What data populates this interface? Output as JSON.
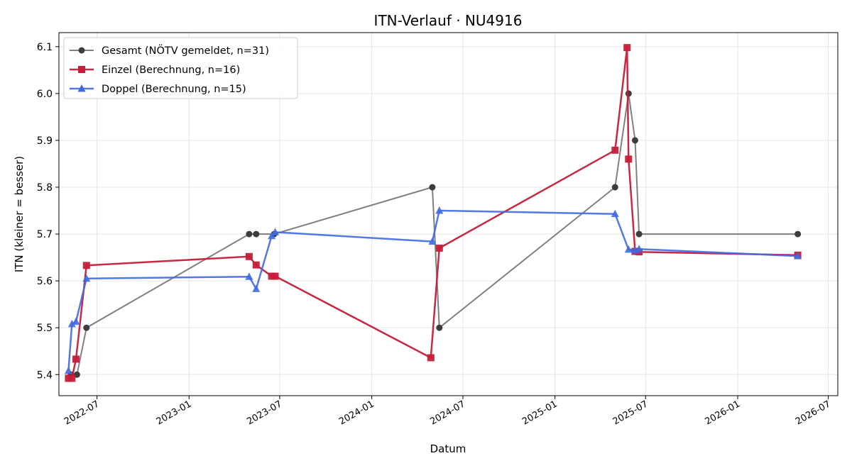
{
  "chart_data": {
    "type": "line",
    "title": "ITN-Verlauf · NU4916",
    "xlabel": "Datum",
    "ylabel": "ITN  (kleiner = besser)",
    "xlim": [
      "2022-04-16",
      "2026-07-20"
    ],
    "ylim": [
      5.355,
      6.13
    ],
    "x_ticks": [
      {
        "date": "2022-07-01",
        "label": "2022-07"
      },
      {
        "date": "2023-01-01",
        "label": "2023-01"
      },
      {
        "date": "2023-07-01",
        "label": "2023-07"
      },
      {
        "date": "2024-01-01",
        "label": "2024-01"
      },
      {
        "date": "2024-07-01",
        "label": "2024-07"
      },
      {
        "date": "2025-01-01",
        "label": "2025-01"
      },
      {
        "date": "2025-07-01",
        "label": "2025-07"
      },
      {
        "date": "2026-01-01",
        "label": "2026-01"
      },
      {
        "date": "2026-07-01",
        "label": "2026-07"
      }
    ],
    "y_ticks": [
      {
        "value": 5.4,
        "label": "5.4"
      },
      {
        "value": 5.5,
        "label": "5.5"
      },
      {
        "value": 5.6,
        "label": "5.6"
      },
      {
        "value": 5.7,
        "label": "5.7"
      },
      {
        "value": 5.8,
        "label": "5.8"
      },
      {
        "value": 5.9,
        "label": "5.9"
      },
      {
        "value": 6.0,
        "label": "6.0"
      },
      {
        "value": 6.1,
        "label": "6.1"
      }
    ],
    "grid": true,
    "legend_position": "top-left",
    "series": [
      {
        "name": "Gesamt (NÖTV gemeldet, n=31)",
        "color": "#555555",
        "marker": "circle",
        "points": [
          {
            "x": "2022-05-10",
            "y": 5.4
          },
          {
            "x": "2022-05-22",
            "y": 5.4
          },
          {
            "x": "2022-06-10",
            "y": 5.5
          },
          {
            "x": "2023-05-01",
            "y": 5.7
          },
          {
            "x": "2023-05-15",
            "y": 5.7
          },
          {
            "x": "2023-06-20",
            "y": 5.7
          },
          {
            "x": "2024-05-01",
            "y": 5.8
          },
          {
            "x": "2024-05-15",
            "y": 5.5
          },
          {
            "x": "2025-05-01",
            "y": 5.8
          },
          {
            "x": "2025-05-28",
            "y": 6.0
          },
          {
            "x": "2025-06-10",
            "y": 5.9
          },
          {
            "x": "2025-06-18",
            "y": 5.7
          },
          {
            "x": "2026-05-01",
            "y": 5.7
          }
        ]
      },
      {
        "name": "Einzel (Berechnung, n=16)",
        "color": "#c41e3a",
        "marker": "square",
        "points": [
          {
            "x": "2022-05-05",
            "y": 5.392
          },
          {
            "x": "2022-05-12",
            "y": 5.392
          },
          {
            "x": "2022-05-20",
            "y": 5.433
          },
          {
            "x": "2022-06-10",
            "y": 5.633
          },
          {
            "x": "2023-05-01",
            "y": 5.652
          },
          {
            "x": "2023-05-15",
            "y": 5.634
          },
          {
            "x": "2023-06-15",
            "y": 5.61
          },
          {
            "x": "2023-06-22",
            "y": 5.61
          },
          {
            "x": "2024-04-28",
            "y": 5.436
          },
          {
            "x": "2024-05-15",
            "y": 5.67
          },
          {
            "x": "2025-05-01",
            "y": 5.879
          },
          {
            "x": "2025-05-25",
            "y": 6.098
          },
          {
            "x": "2025-05-28",
            "y": 5.86
          },
          {
            "x": "2025-06-10",
            "y": 5.663
          },
          {
            "x": "2025-06-18",
            "y": 5.662
          },
          {
            "x": "2026-05-01",
            "y": 5.655
          }
        ]
      },
      {
        "name": "Doppel (Berechnung, n=15)",
        "color": "#4169e1",
        "marker": "triangle",
        "points": [
          {
            "x": "2022-05-05",
            "y": 5.408
          },
          {
            "x": "2022-05-12",
            "y": 5.508
          },
          {
            "x": "2022-05-20",
            "y": 5.513
          },
          {
            "x": "2022-06-10",
            "y": 5.605
          },
          {
            "x": "2023-05-01",
            "y": 5.609
          },
          {
            "x": "2023-05-15",
            "y": 5.583
          },
          {
            "x": "2023-06-15",
            "y": 5.696
          },
          {
            "x": "2023-06-22",
            "y": 5.704
          },
          {
            "x": "2024-05-01",
            "y": 5.684
          },
          {
            "x": "2024-05-15",
            "y": 5.75
          },
          {
            "x": "2025-05-01",
            "y": 5.743
          },
          {
            "x": "2025-05-28",
            "y": 5.667
          },
          {
            "x": "2025-06-10",
            "y": 5.665
          },
          {
            "x": "2025-06-18",
            "y": 5.668
          },
          {
            "x": "2026-05-01",
            "y": 5.653
          }
        ]
      }
    ]
  }
}
